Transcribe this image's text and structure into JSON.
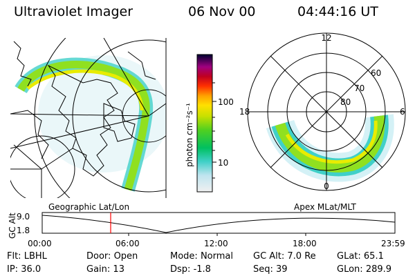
{
  "header": {
    "instrument": "Ultraviolet Imager",
    "date": "06 Nov 00",
    "time": "04:44:16 UT"
  },
  "colorbar": {
    "unit_label": "photon cm⁻²s⁻¹",
    "ticks": [
      "100",
      "10"
    ]
  },
  "polar_plot": {
    "mlt_labels": {
      "top": "12",
      "left": "18",
      "right": "6",
      "bottom": "0"
    },
    "mlat_labels": [
      "60",
      "70",
      "80"
    ]
  },
  "timeline": {
    "left_caption": "Geographic Lat/Lon",
    "right_caption": "Apex MLat/MLT",
    "y_axis_label": "GC Alt",
    "y_ticks": [
      "9.0",
      "1.8"
    ],
    "x_ticks": [
      "00:00",
      "06:00",
      "12:00",
      "18:00",
      "23:59"
    ],
    "current_time_marker": "04:44",
    "accent_color": "#ff0000"
  },
  "status": {
    "rows": [
      [
        {
          "key": "Flt:",
          "value": "LBHL"
        },
        {
          "key": "Door:",
          "value": "Open"
        },
        {
          "key": "Mode:",
          "value": "Normal"
        },
        {
          "key": "GC Alt:",
          "value": "7.0 Re"
        },
        {
          "key": "GLat:",
          "value": "65.1"
        }
      ],
      [
        {
          "key": "IP:",
          "value": "36.0"
        },
        {
          "key": "Gain:",
          "value": "13"
        },
        {
          "key": "Dsp:",
          "value": "-1.8"
        },
        {
          "key": "Seq:",
          "value": "39"
        },
        {
          "key": "GLon:",
          "value": "289.9"
        }
      ]
    ]
  }
}
